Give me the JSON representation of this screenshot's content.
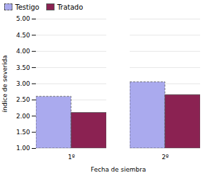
{
  "chart_data": {
    "type": "bar",
    "categories": [
      "1º",
      "2º"
    ],
    "series": [
      {
        "name": "Testigo",
        "color": "#aaaaee",
        "line_style": "dashed",
        "values": [
          2.6,
          3.05
        ]
      },
      {
        "name": "Tratado",
        "color": "#8b2252",
        "line_style": "solid",
        "values": [
          2.1,
          2.65
        ]
      }
    ],
    "xlabel": "Fecha de siembra",
    "ylabel": "índice de severida",
    "ylim": [
      1.0,
      5.0
    ],
    "yticks": [
      {
        "value": 1.0,
        "label": "1.00"
      },
      {
        "value": 1.5,
        "label": "1.50"
      },
      {
        "value": 2.0,
        "label": "2.00"
      },
      {
        "value": 2.5,
        "label": "2.50"
      },
      {
        "value": 3.0,
        "label": "3.00"
      },
      {
        "value": 3.5,
        "label": "3.50"
      },
      {
        "value": 4.0,
        "label": "4.00"
      },
      {
        "value": 4.5,
        "label": "4.50"
      },
      {
        "value": 5.0,
        "label": "5.00"
      }
    ],
    "grid": true,
    "legend": "upper left"
  }
}
